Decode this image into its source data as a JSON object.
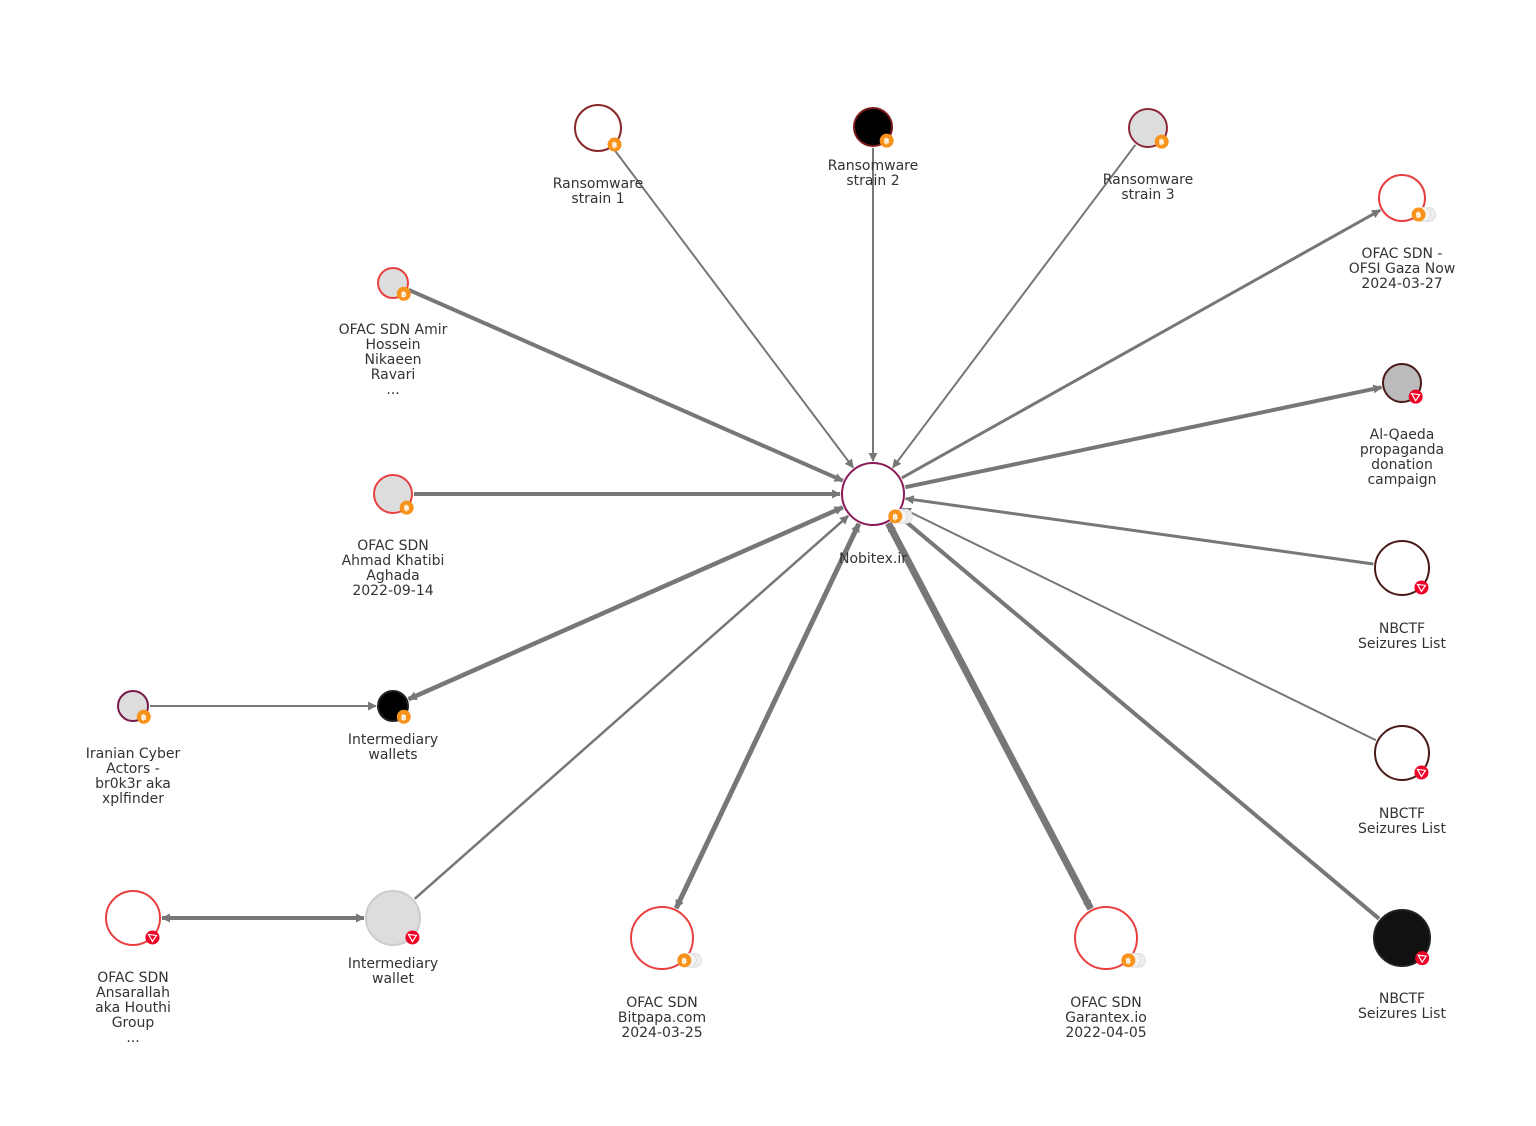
{
  "graph": {
    "center": {
      "id": "nobitex",
      "lines": [
        "Nobitex.ir"
      ],
      "chain": "bitcoin",
      "stacked": true,
      "fill": "#ffffff",
      "stroke": "#8b1a5a"
    },
    "nodes": [
      {
        "id": "rs1",
        "lines": [
          "Ransomware",
          "strain 1"
        ],
        "chain": "bitcoin",
        "fill": "#ffffff",
        "stroke": "#8b2a2a"
      },
      {
        "id": "rs2",
        "lines": [
          "Ransomware",
          "strain 2"
        ],
        "chain": "bitcoin",
        "fill": "#000000",
        "stroke": "#7a1a1a"
      },
      {
        "id": "rs3",
        "lines": [
          "Ransomware",
          "strain 3"
        ],
        "chain": "bitcoin",
        "fill": "#dddddd",
        "stroke": "#8b2a3a"
      },
      {
        "id": "gaza",
        "lines": [
          "OFAC SDN -",
          "OFSI Gaza Now",
          "2024-03-27"
        ],
        "chain": "bitcoin",
        "stacked": true,
        "fill": "#ffffff",
        "stroke": "#e84040"
      },
      {
        "id": "alqaeda",
        "lines": [
          "Al-Qaeda",
          "propaganda",
          "donation",
          "campaign"
        ],
        "chain": "tron",
        "fill": "#bbbbbb",
        "stroke": "#4a1a1a"
      },
      {
        "id": "nbctf1",
        "lines": [
          "NBCTF",
          "Seizures List"
        ],
        "chain": "tron",
        "fill": "#ffffff",
        "stroke": "#4a1a1a"
      },
      {
        "id": "nbctf2",
        "lines": [
          "NBCTF",
          "Seizures List"
        ],
        "chain": "tron",
        "fill": "#ffffff",
        "stroke": "#4a1a1a"
      },
      {
        "id": "nbctf3",
        "lines": [
          "NBCTF",
          "Seizures List"
        ],
        "chain": "tron",
        "fill": "#111111",
        "stroke": "#222222"
      },
      {
        "id": "garantex",
        "lines": [
          "OFAC SDN",
          "Garantex.io",
          "2022-04-05"
        ],
        "chain": "bitcoin",
        "stacked": true,
        "fill": "#ffffff",
        "stroke": "#e84040"
      },
      {
        "id": "bitpapa",
        "lines": [
          "OFAC SDN",
          "Bitpapa.com",
          "2024-03-25"
        ],
        "chain": "bitcoin",
        "stacked": true,
        "fill": "#ffffff",
        "stroke": "#e84040"
      },
      {
        "id": "iwallet",
        "lines": [
          "Intermediary",
          "wallet"
        ],
        "chain": "tron",
        "fill": "#dddddd",
        "stroke": "#cccccc"
      },
      {
        "id": "houthi",
        "lines": [
          "OFAC SDN",
          "Ansarallah",
          "aka Houthi",
          "Group",
          "..."
        ],
        "chain": "tron",
        "fill": "#ffffff",
        "stroke": "#e84040"
      },
      {
        "id": "iranian",
        "lines": [
          "Iranian Cyber",
          "Actors -",
          "br0k3r aka",
          "xplfinder"
        ],
        "chain": "bitcoin",
        "fill": "#dddddd",
        "stroke": "#7a1a4a"
      },
      {
        "id": "iwallets",
        "lines": [
          "Intermediary",
          "wallets"
        ],
        "chain": "bitcoin",
        "fill": "#000000",
        "stroke": "#222222"
      },
      {
        "id": "khatibi",
        "lines": [
          "OFAC SDN",
          "Ahmad Khatibi",
          "Aghada",
          "2022-09-14"
        ],
        "chain": "bitcoin",
        "fill": "#dddddd",
        "stroke": "#e84040"
      },
      {
        "id": "ravari",
        "lines": [
          "OFAC SDN Amir",
          "Hossein",
          "Nikaeen",
          "Ravari",
          "..."
        ],
        "chain": "bitcoin",
        "fill": "#dddddd",
        "stroke": "#e84040"
      }
    ],
    "edges": [
      {
        "from": "rs1",
        "to": "nobitex"
      },
      {
        "from": "rs2",
        "to": "nobitex"
      },
      {
        "from": "rs3",
        "to": "nobitex"
      },
      {
        "from": "ravari",
        "to": "nobitex"
      },
      {
        "from": "khatibi",
        "to": "nobitex"
      },
      {
        "from": "nobitex",
        "to": "gaza"
      },
      {
        "from": "nobitex",
        "to": "alqaeda"
      },
      {
        "from": "nbctf1",
        "to": "nobitex"
      },
      {
        "from": "nbctf2",
        "to": "nobitex"
      },
      {
        "from": "nbctf3",
        "to": "nobitex"
      },
      {
        "from": "nobitex",
        "to": "garantex",
        "bidirectional": true
      },
      {
        "from": "nobitex",
        "to": "bitpapa",
        "bidirectional": true
      },
      {
        "from": "iwallet",
        "to": "nobitex"
      },
      {
        "from": "nobitex",
        "to": "iwallets",
        "bidirectional": true
      },
      {
        "from": "iranian",
        "to": "iwallets"
      },
      {
        "from": "houthi",
        "to": "iwallet",
        "bidirectional": true
      }
    ],
    "badge_colors": {
      "bitcoin": "#f7931a",
      "tron": "#ef0027"
    },
    "edge_color": "#777777"
  }
}
